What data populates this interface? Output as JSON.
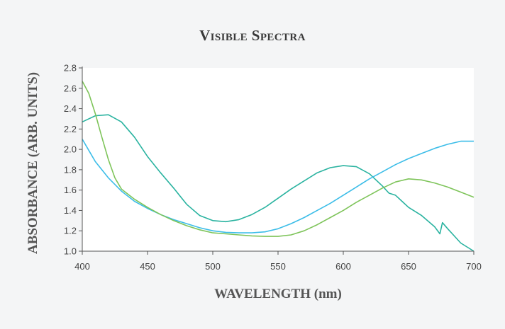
{
  "chart_data": {
    "type": "line",
    "title": "Visible Spectra",
    "xlabel": "WAVELENGTH (nm)",
    "ylabel": "ABSORBANCE (ARB. UNITS)",
    "xlim": [
      400,
      700
    ],
    "ylim": [
      1.0,
      2.8
    ],
    "xticks": [
      400,
      450,
      500,
      550,
      600,
      650,
      700
    ],
    "yticks": [
      "1.0",
      "1.2",
      "1.4",
      "1.6",
      "1.8",
      "2.0",
      "2.2",
      "2.4",
      "2.6",
      "2.8"
    ],
    "grid": false,
    "series": [
      {
        "color": "#2ab3a0",
        "x": [
          400,
          410,
          420,
          430,
          440,
          450,
          460,
          470,
          480,
          490,
          500,
          510,
          520,
          530,
          540,
          550,
          560,
          570,
          580,
          590,
          600,
          610,
          620,
          630,
          635,
          640,
          645,
          650,
          660,
          670,
          674,
          676,
          680,
          690,
          700
        ],
        "y": [
          2.27,
          2.33,
          2.34,
          2.27,
          2.12,
          1.93,
          1.77,
          1.62,
          1.46,
          1.35,
          1.3,
          1.29,
          1.31,
          1.36,
          1.43,
          1.52,
          1.61,
          1.69,
          1.77,
          1.82,
          1.84,
          1.83,
          1.76,
          1.64,
          1.57,
          1.55,
          1.49,
          1.43,
          1.35,
          1.24,
          1.17,
          1.28,
          1.22,
          1.08,
          1.0
        ]
      },
      {
        "color": "#3cbde8",
        "x": [
          400,
          410,
          420,
          430,
          440,
          450,
          460,
          470,
          480,
          490,
          500,
          510,
          520,
          530,
          540,
          550,
          560,
          570,
          580,
          590,
          600,
          610,
          620,
          630,
          640,
          650,
          660,
          670,
          680,
          690,
          700
        ],
        "y": [
          2.1,
          1.88,
          1.72,
          1.59,
          1.49,
          1.42,
          1.36,
          1.31,
          1.27,
          1.23,
          1.2,
          1.185,
          1.18,
          1.18,
          1.19,
          1.22,
          1.27,
          1.33,
          1.4,
          1.47,
          1.55,
          1.63,
          1.71,
          1.78,
          1.85,
          1.91,
          1.96,
          2.01,
          2.05,
          2.08,
          2.08
        ]
      },
      {
        "color": "#7ec45a",
        "x": [
          400,
          405,
          410,
          415,
          420,
          425,
          430,
          440,
          450,
          460,
          470,
          480,
          490,
          500,
          510,
          520,
          530,
          540,
          550,
          560,
          570,
          580,
          590,
          600,
          610,
          620,
          630,
          640,
          650,
          660,
          670,
          680,
          690,
          700
        ],
        "y": [
          2.67,
          2.55,
          2.35,
          2.12,
          1.9,
          1.72,
          1.61,
          1.51,
          1.43,
          1.36,
          1.3,
          1.25,
          1.21,
          1.18,
          1.17,
          1.16,
          1.15,
          1.145,
          1.145,
          1.16,
          1.2,
          1.26,
          1.33,
          1.4,
          1.48,
          1.55,
          1.62,
          1.68,
          1.71,
          1.7,
          1.67,
          1.63,
          1.58,
          1.53
        ]
      }
    ]
  }
}
